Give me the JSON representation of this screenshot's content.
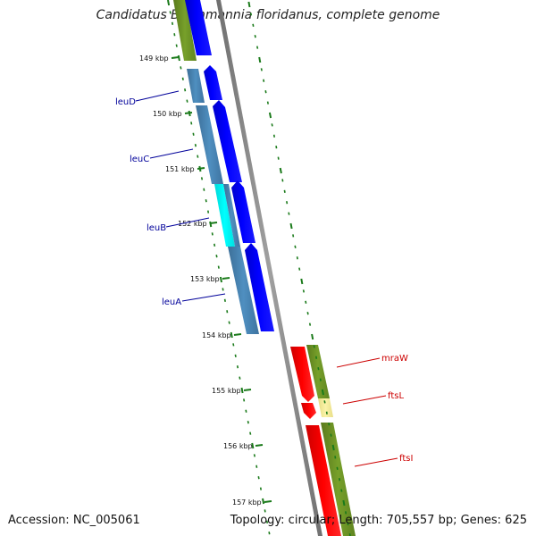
{
  "title": "Candidatus Blochmannia floridanus, complete genome",
  "accession": "Accession: NC_005061",
  "summary": "Topology: circular; Length: 705,557 bp; Genes: 625",
  "scale_labels": [
    "149 kbp",
    "150 kbp",
    "151 kbp",
    "152 kbp",
    "153 kbp",
    "154 kbp",
    "155 kbp",
    "156 kbp",
    "157 kbp"
  ],
  "genes": [
    {
      "name": "leuD",
      "color": "#00009a"
    },
    {
      "name": "leuC",
      "color": "#00009a"
    },
    {
      "name": "leuB",
      "color": "#00009a"
    },
    {
      "name": "leuA",
      "color": "#00009a"
    },
    {
      "name": "mraW",
      "color": "#cc0000"
    },
    {
      "name": "ftsL",
      "color": "#cc0000"
    },
    {
      "name": "ftsI",
      "color": "#cc0000"
    }
  ],
  "colors": {
    "backbone": "#888888",
    "forward_cds": "#0000ee",
    "reverse_cds": "#ee0000",
    "cog_blue": "#4682b4",
    "cog_cyan": "#00ffff",
    "cog_green": "#6b8e23",
    "cog_pale": "#f0e68c",
    "tick": "#1a7a1a"
  }
}
